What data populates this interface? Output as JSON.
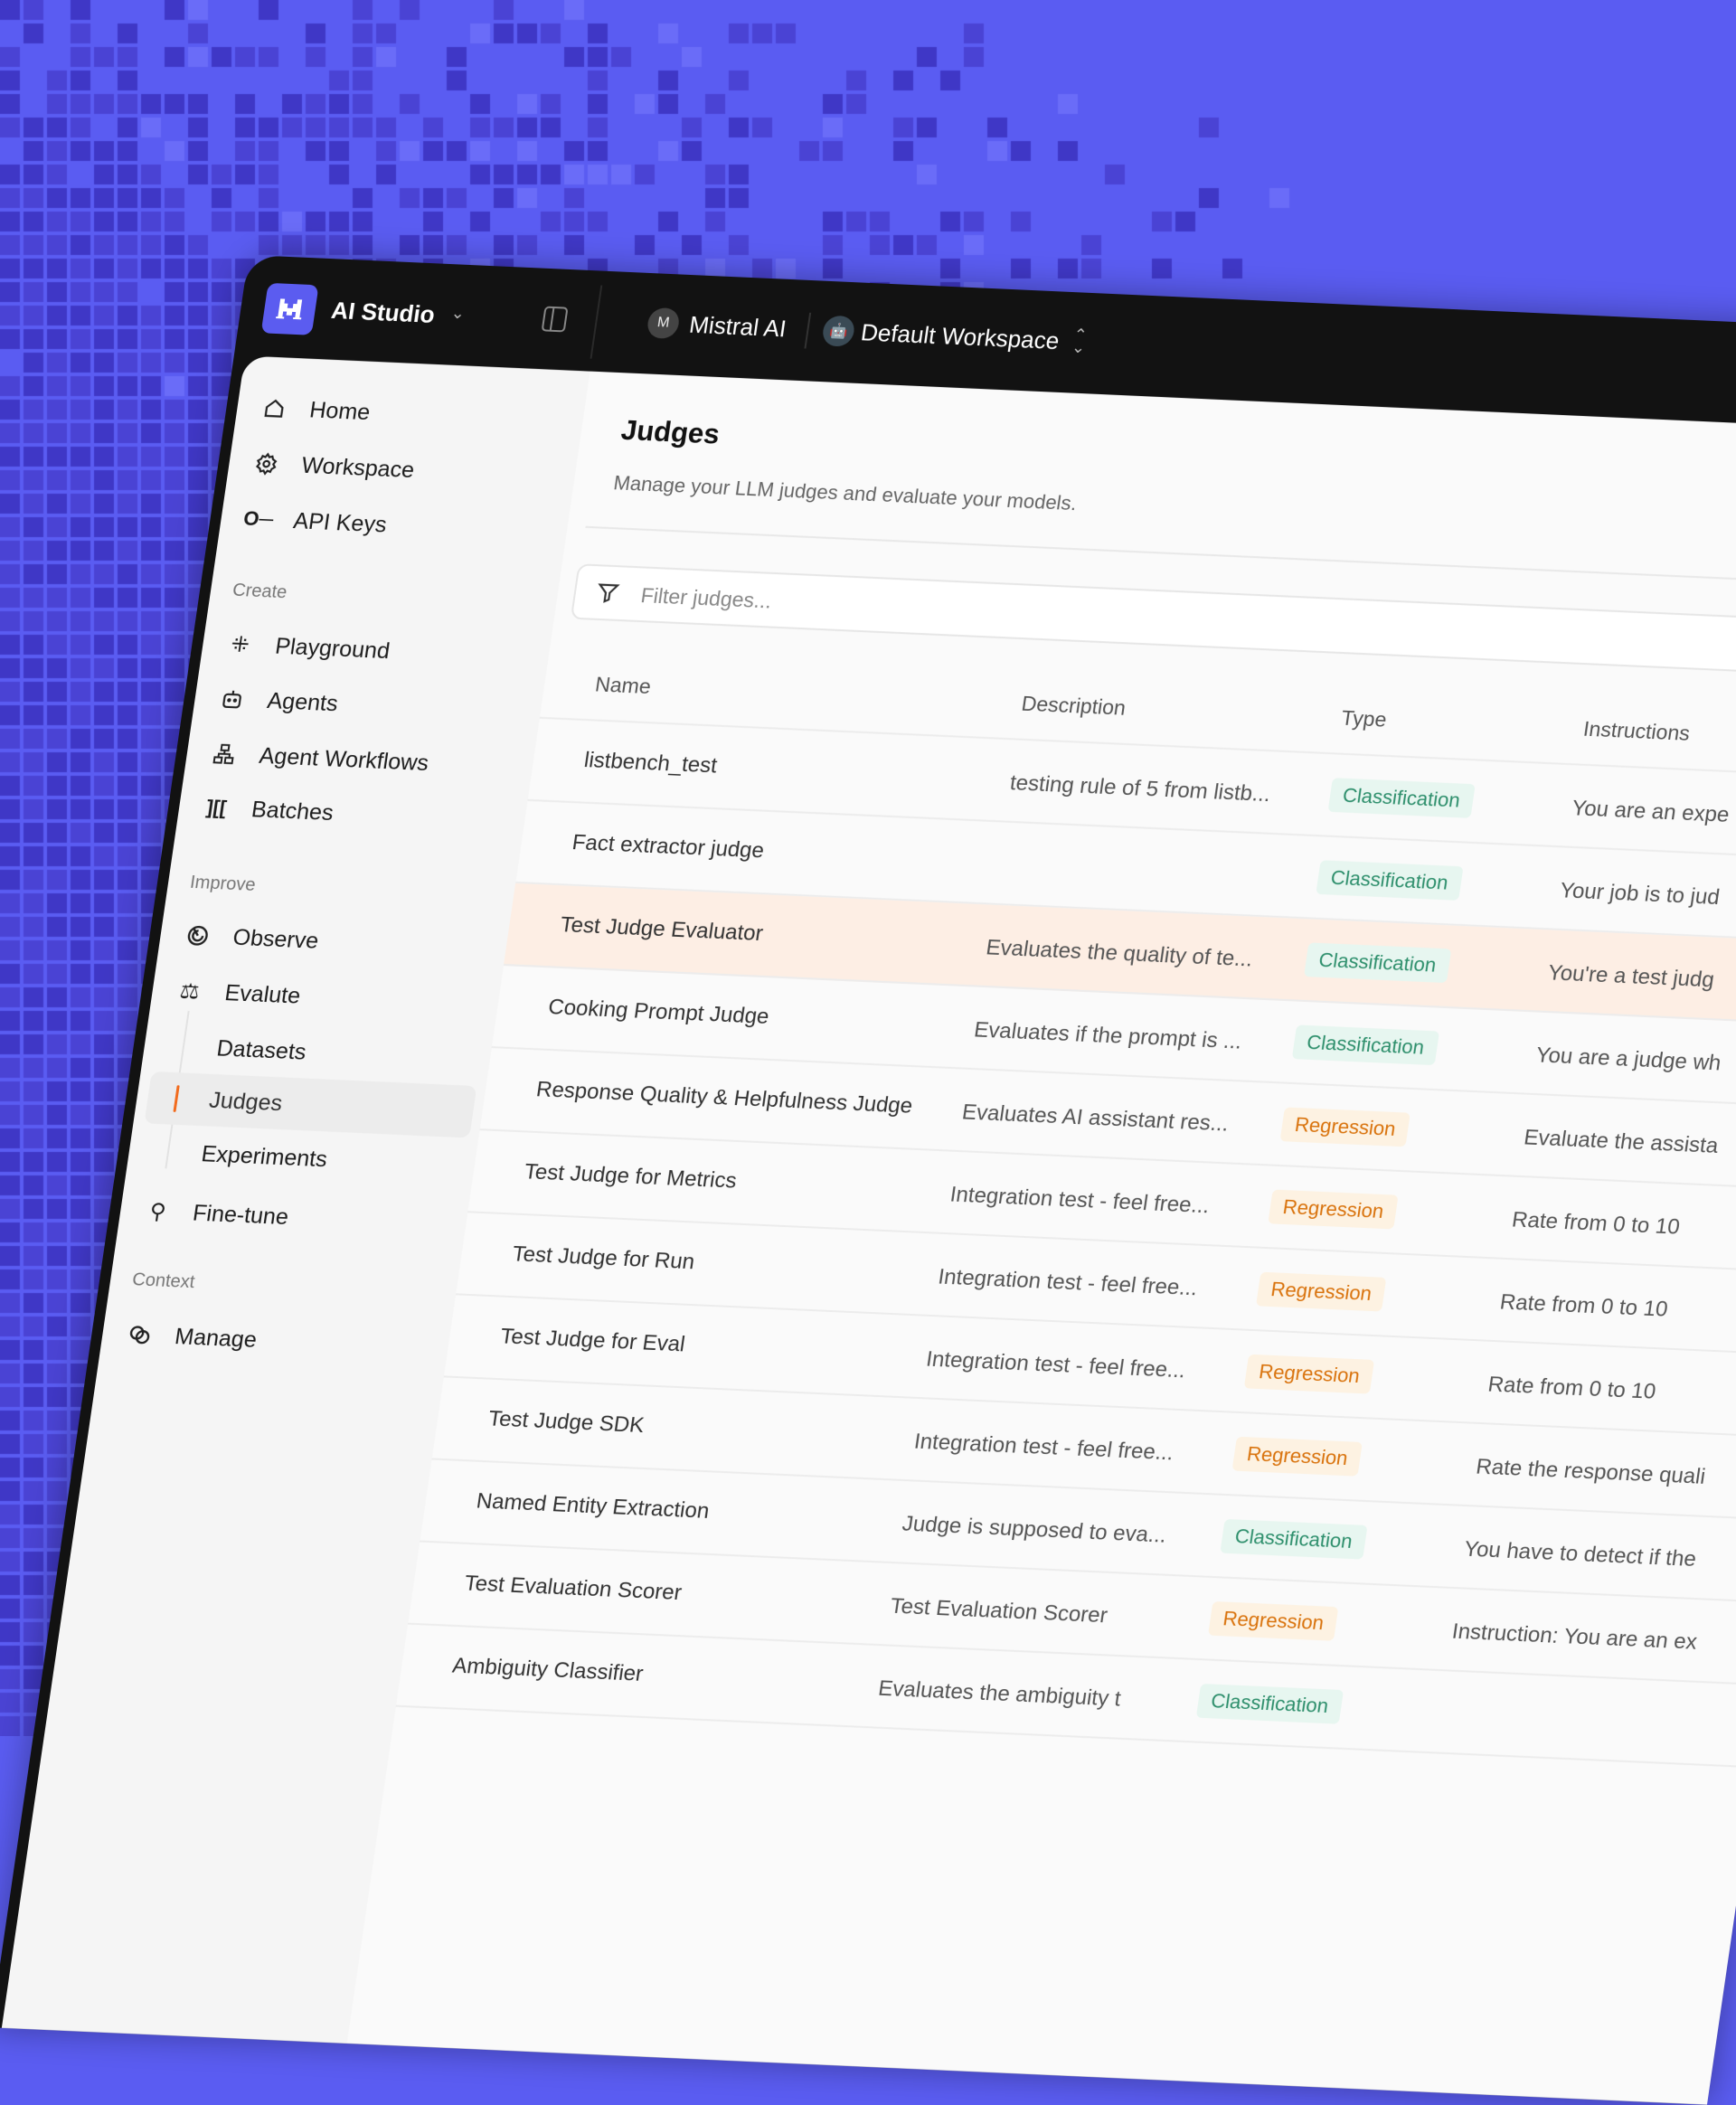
{
  "colors": {
    "background": "#5a5cf2",
    "accent": "#5b5cf0",
    "active_indicator": "#f26b1d",
    "classification": "#2e8f6c",
    "regression": "#d9730d",
    "highlight_row": "#fdeee4"
  },
  "topbar": {
    "app_name": "AI Studio",
    "org_initial": "M",
    "org_name": "Mistral AI",
    "workspace_name": "Default Workspace"
  },
  "sidebar": {
    "items": [
      {
        "label": "Home",
        "icon": "home-icon"
      },
      {
        "label": "Workspace",
        "icon": "gear-icon"
      },
      {
        "label": "API Keys",
        "icon": "key-icon"
      }
    ],
    "create": {
      "label": "Create",
      "items": [
        {
          "label": "Playground",
          "icon": "sparkle-icon"
        },
        {
          "label": "Agents",
          "icon": "robot-icon"
        },
        {
          "label": "Agent Workflows",
          "icon": "workflow-icon"
        },
        {
          "label": "Batches",
          "icon": "batches-icon"
        }
      ]
    },
    "improve": {
      "label": "Improve",
      "items": [
        {
          "label": "Observe",
          "icon": "observe-icon"
        },
        {
          "label": "Evalute",
          "icon": "scale-icon"
        },
        {
          "label": "Datasets"
        },
        {
          "label": "Judges",
          "active": true
        },
        {
          "label": "Experiments"
        },
        {
          "label": "Fine-tune",
          "icon": "fine-tune-icon"
        }
      ]
    },
    "context": {
      "label": "Context",
      "items": [
        {
          "label": "Manage",
          "icon": "link-icon"
        }
      ]
    }
  },
  "main": {
    "title": "Judges",
    "subtitle": "Manage your LLM judges and evaluate your models.",
    "filter_placeholder": "Filter judges...",
    "columns": {
      "name": "Name",
      "description": "Description",
      "type": "Type",
      "instructions": "Instructions"
    },
    "rows": [
      {
        "name": "listbench_test",
        "description": "testing rule of 5 from listb...",
        "type": "Classification",
        "instructions": "You are an expe"
      },
      {
        "name": "Fact extractor judge",
        "description": "",
        "type": "Classification",
        "instructions": "Your job is to jud"
      },
      {
        "name": "Test Judge Evaluator",
        "description": "Evaluates the quality of te...",
        "type": "Classification",
        "instructions": "You're a test judg",
        "highlighted": true
      },
      {
        "name": "Cooking Prompt Judge",
        "description": "Evaluates if the prompt is ...",
        "type": "Classification",
        "instructions": "You are a judge wh"
      },
      {
        "name": "Response Quality & Helpfulness Judge",
        "description": "Evaluates AI assistant res...",
        "type": "Regression",
        "instructions": "Evaluate the assista"
      },
      {
        "name": "Test Judge for Metrics",
        "description": "Integration test - feel free...",
        "type": "Regression",
        "instructions": "Rate from 0 to 10"
      },
      {
        "name": "Test Judge for Run",
        "description": "Integration test - feel free...",
        "type": "Regression",
        "instructions": "Rate from 0 to 10"
      },
      {
        "name": "Test Judge for Eval",
        "description": "Integration test - feel free...",
        "type": "Regression",
        "instructions": "Rate from 0 to 10"
      },
      {
        "name": "Test Judge SDK",
        "description": "Integration test - feel free...",
        "type": "Regression",
        "instructions": "Rate the response quali"
      },
      {
        "name": "Named Entity Extraction",
        "description": "Judge is supposed to eva...",
        "type": "Classification",
        "instructions": "You have to detect if the"
      },
      {
        "name": "Test Evaluation Scorer",
        "description": "Test Evaluation Scorer",
        "type": "Regression",
        "instructions": "Instruction: You are an ex"
      },
      {
        "name": "Ambiguity Classifier",
        "description": "Evaluates the ambiguity t",
        "type": "Classification",
        "instructions": ""
      }
    ]
  }
}
